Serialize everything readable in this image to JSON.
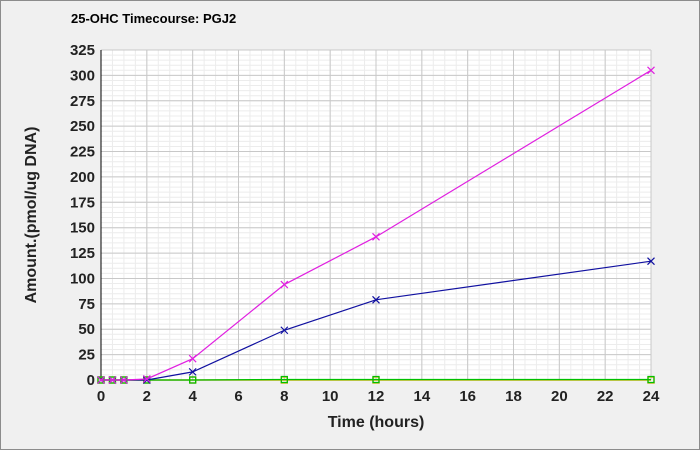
{
  "chart_data": {
    "type": "line",
    "title": "25-OHC Timecourse: PGJ2",
    "xlabel": "Time (hours)",
    "ylabel": "Amount.(pmol/ug DNA)",
    "xlim": [
      0,
      24
    ],
    "ylim": [
      0,
      325
    ],
    "xticks": [
      0,
      2,
      4,
      6,
      8,
      10,
      12,
      14,
      16,
      18,
      20,
      22,
      24
    ],
    "yticks": [
      0,
      25,
      50,
      75,
      100,
      125,
      150,
      175,
      200,
      225,
      250,
      275,
      300,
      325
    ],
    "grid": true,
    "legend": "none",
    "series": [
      {
        "color": "#e020e0",
        "marker": "x",
        "x": [
          0,
          0.5,
          1,
          2,
          4,
          8,
          12,
          24
        ],
        "y": [
          0,
          0,
          0,
          1,
          21,
          94,
          141,
          305
        ]
      },
      {
        "color": "#1010a0",
        "marker": "x",
        "x": [
          0,
          0.5,
          1,
          2,
          4,
          8,
          12,
          24
        ],
        "y": [
          0,
          0,
          0,
          0,
          8,
          49,
          79,
          117
        ]
      },
      {
        "color": "#00c000",
        "marker": "square",
        "x": [
          0,
          0.5,
          1,
          2,
          4,
          8,
          12,
          24
        ],
        "y": [
          0,
          0,
          0,
          0,
          0,
          0.5,
          0.5,
          0.5
        ]
      },
      {
        "color": "#c8c800",
        "marker": "square",
        "x": [
          0,
          0.5,
          1,
          2,
          4,
          8,
          12,
          24
        ],
        "y": [
          0,
          0,
          0,
          0,
          0,
          0,
          0,
          0
        ]
      },
      {
        "color": "#b03000",
        "marker": "square",
        "x": [
          0,
          0.5,
          1,
          2,
          4,
          8,
          12,
          24
        ],
        "y": [
          0,
          0,
          0,
          0,
          0,
          0,
          0,
          0
        ]
      }
    ]
  }
}
